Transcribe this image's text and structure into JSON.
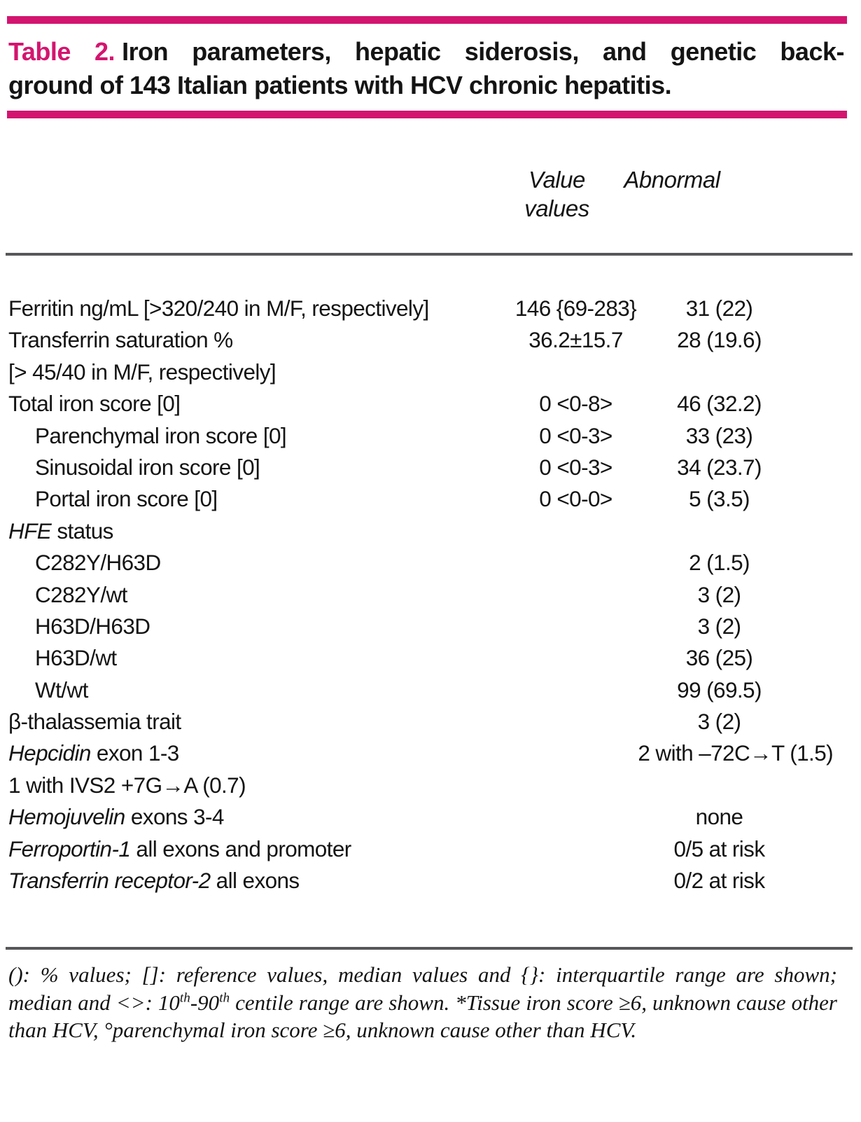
{
  "accent_color": "#d3156f",
  "rule_color": "#57575a",
  "title": {
    "label": "Table 2.",
    "line1_rest": "Iron parameters, hepatic siderosis, and genetic back-",
    "line2": "ground of 143 Italian patients with HCV chronic hepatitis."
  },
  "table": {
    "headers": {
      "value_line1": "Value",
      "value_line2": "values",
      "abnormal": "Abnormal"
    },
    "rows": [
      {
        "label_italic": "",
        "label": "Ferritin ng/mL [>320/240 in M/F, respectively]",
        "indent": false,
        "value": "146 {69-283}",
        "abnormal": "31 (22)"
      },
      {
        "label_italic": "",
        "label": "Transferrin saturation %",
        "indent": false,
        "value": "36.2±15.7",
        "abnormal": "28 (19.6)"
      },
      {
        "label_italic": "",
        "label": "[> 45/40 in M/F, respectively]",
        "indent": false,
        "value": "",
        "abnormal": ""
      },
      {
        "label_italic": "",
        "label": "Total iron score [0]",
        "indent": false,
        "value": "0 <0-8>",
        "abnormal": "46 (32.2)"
      },
      {
        "label_italic": "",
        "label": "Parenchymal iron score [0]",
        "indent": true,
        "value": "0 <0-3>",
        "abnormal": "33 (23)"
      },
      {
        "label_italic": "",
        "label": "Sinusoidal iron score [0]",
        "indent": true,
        "value": "0 <0-3>",
        "abnormal": "34 (23.7)"
      },
      {
        "label_italic": "",
        "label": "Portal iron score [0]",
        "indent": true,
        "value": "0 <0-0>",
        "abnormal": "5 (3.5)"
      },
      {
        "label_italic": "HFE",
        "label": " status",
        "indent": false,
        "value": "",
        "abnormal": ""
      },
      {
        "label_italic": "",
        "label": "C282Y/H63D",
        "indent": true,
        "value": "",
        "abnormal": "2 (1.5)"
      },
      {
        "label_italic": "",
        "label": "C282Y/wt",
        "indent": true,
        "value": "",
        "abnormal": "3 (2)"
      },
      {
        "label_italic": "",
        "label": "H63D/H63D",
        "indent": true,
        "value": "",
        "abnormal": "3 (2)"
      },
      {
        "label_italic": "",
        "label": "H63D/wt",
        "indent": true,
        "value": "",
        "abnormal": "36 (25)"
      },
      {
        "label_italic": "",
        "label": "Wt/wt",
        "indent": true,
        "value": "",
        "abnormal": "99 (69.5)"
      },
      {
        "label_italic": "",
        "label": "β-thalassemia trait",
        "indent": false,
        "value": "",
        "abnormal": "3 (2)"
      },
      {
        "label_italic": "Hepcidin",
        "label": " exon 1-3",
        "indent": false,
        "wide_value": "2 with –72C→T (1.5)"
      },
      {
        "label_italic": "",
        "label": "1 with IVS2 +7G→A (0.7)",
        "indent": false,
        "value": "",
        "abnormal": ""
      },
      {
        "label_italic": "Hemojuvelin",
        "label": " exons 3-4",
        "indent": false,
        "value": "",
        "abnormal": "none"
      },
      {
        "label_italic": "Ferroportin-1",
        "label": " all exons and promoter",
        "indent": false,
        "value": "",
        "abnormal": "0/5 at risk"
      },
      {
        "label_italic": "Transferrin receptor-2",
        "label": " all exons",
        "indent": false,
        "value": "",
        "abnormal": "0/2 at risk"
      }
    ]
  },
  "footnote": {
    "segments": [
      {
        "text": "(): % values; []: reference values, median values and {}: interquartile range are shown; median and <>: 10",
        "sup": false
      },
      {
        "text": "th",
        "sup": true
      },
      {
        "text": "-90",
        "sup": false
      },
      {
        "text": "th",
        "sup": true
      },
      {
        "text": " centile range are shown. *Tissue iron score ≥6, unknown cause other than HCV, °parenchymal iron score ≥6, unknown cause other than HCV.",
        "sup": false
      }
    ]
  }
}
